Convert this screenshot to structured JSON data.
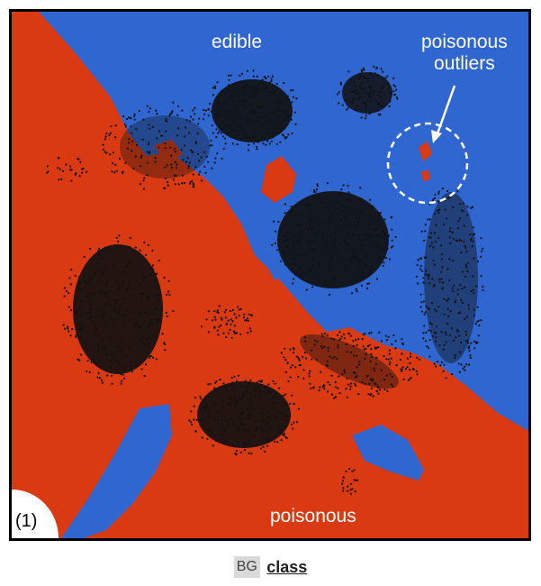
{
  "labels": {
    "edible": "edible",
    "outliers_line1": "poisonous",
    "outliers_line2": "outliers",
    "poisonous": "poisonous",
    "panel_id": "(1)"
  },
  "footer": {
    "bg_label": "BG",
    "class_label": "class"
  },
  "colors": {
    "edible": "#2f66cf",
    "poisonous": "#d93a12",
    "points": "#111111",
    "annotation": "#ffffff"
  }
}
